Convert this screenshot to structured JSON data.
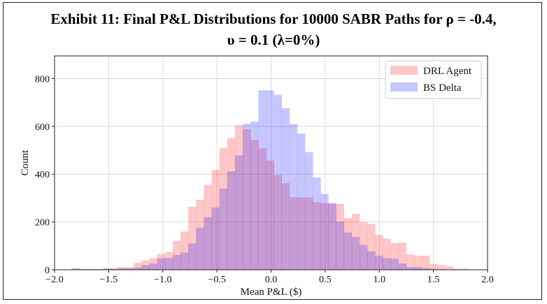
{
  "chart_data": {
    "type": "histogram",
    "title_line1": "Exhibit 11:  Final P&L Distributions for 10000 SABR Paths for ρ = -0.4,",
    "title_line2": "υ = 0.1 (λ=0%)",
    "xlabel": "Mean P&L ($)",
    "ylabel": "Count",
    "xlim": [
      -2.0,
      2.0
    ],
    "ylim": [
      0,
      895
    ],
    "xticks": [
      -2.0,
      -1.5,
      -1.0,
      -0.5,
      0.0,
      0.5,
      1.0,
      1.5,
      2.0
    ],
    "xtick_labels": [
      "−2.0",
      "−1.5",
      "−1.0",
      "−0.5",
      "0.0",
      "0.5",
      "1.0",
      "1.5",
      "2.0"
    ],
    "yticks": [
      0,
      200,
      400,
      600,
      800
    ],
    "ytick_labels": [
      "0",
      "200",
      "400",
      "600",
      "800"
    ],
    "grid": true,
    "legend_position": "top-right",
    "bin_start": -1.843,
    "bin_width": 0.0719,
    "series": [
      {
        "name": "DRL Agent",
        "color": "#ff0000",
        "alpha": 0.22,
        "values": [
          4,
          3,
          3,
          3,
          5,
          5,
          10,
          9,
          29,
          39,
          49,
          66,
          74,
          121,
          160,
          264,
          293,
          355,
          418,
          509,
          551,
          605,
          588,
          544,
          508,
          457,
          396,
          362,
          304,
          303,
          303,
          283,
          279,
          279,
          276,
          216,
          234,
          200,
          191,
          146,
          130,
          112,
          114,
          64,
          59,
          59,
          25,
          20,
          14,
          4,
          4
        ]
      },
      {
        "name": "BS Delta",
        "color": "#0000ff",
        "alpha": 0.22,
        "values": [
          6,
          3,
          3,
          3,
          5,
          5,
          7,
          7,
          9,
          20,
          26,
          48,
          50,
          62,
          72,
          110,
          176,
          220,
          260,
          340,
          412,
          479,
          611,
          620,
          751,
          751,
          732,
          676,
          610,
          570,
          493,
          386,
          317,
          277,
          202,
          156,
          137,
          104,
          77,
          58,
          49,
          46,
          26,
          11,
          11,
          7,
          4,
          2,
          0,
          0,
          0
        ]
      }
    ]
  }
}
